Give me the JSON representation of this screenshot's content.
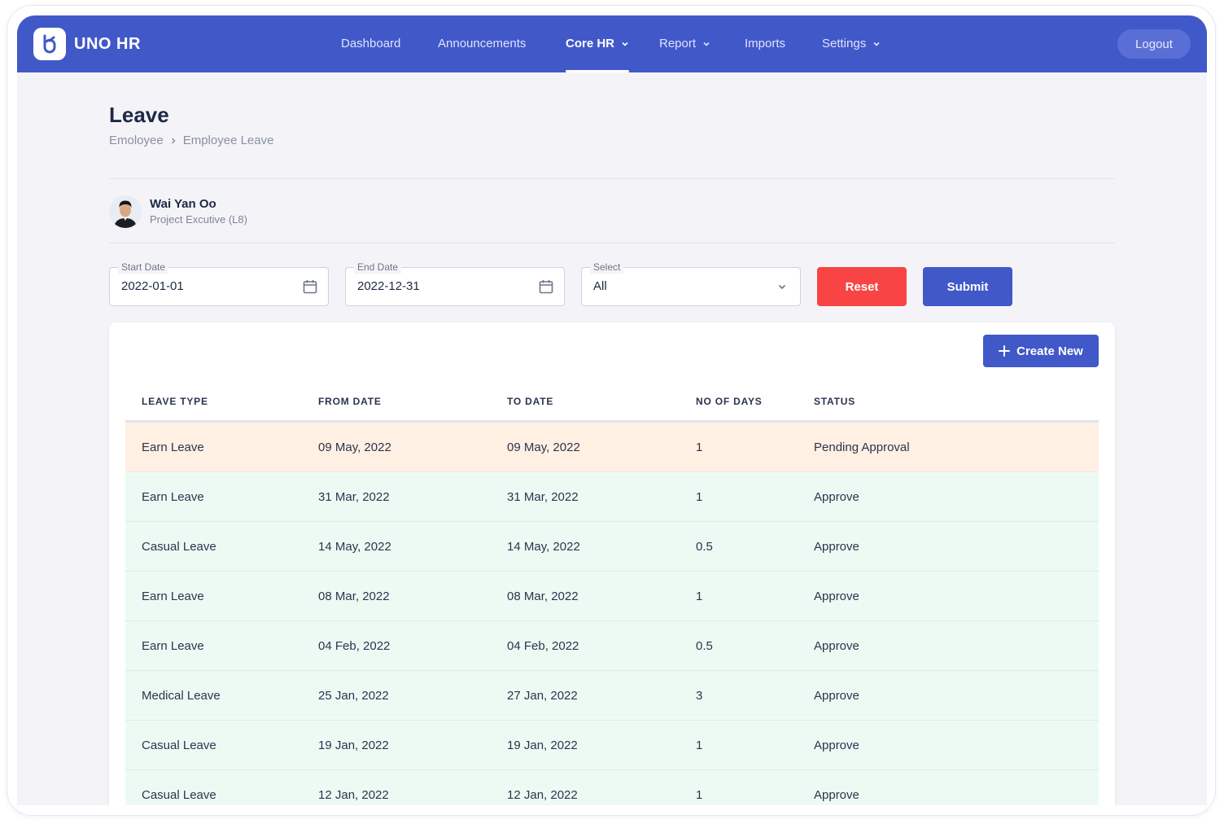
{
  "app": {
    "brand": "UNO HR",
    "logo_icon": "uno-hr-logo-icon",
    "colors": {
      "primary": "#4158c9",
      "danger": "#f84444",
      "pending_row": "#fff0e3",
      "approved_row": "#edfaf4"
    }
  },
  "nav": {
    "items": [
      {
        "label": "Dashboard",
        "has_dropdown": false,
        "active": false
      },
      {
        "label": "Announcements",
        "has_dropdown": false,
        "active": false
      },
      {
        "label": "Core HR",
        "has_dropdown": true,
        "active": true
      },
      {
        "label": "Report",
        "has_dropdown": true,
        "active": false
      },
      {
        "label": "Imports",
        "has_dropdown": false,
        "active": false
      },
      {
        "label": "Settings",
        "has_dropdown": true,
        "active": false
      }
    ],
    "logout_label": "Logout"
  },
  "page": {
    "title": "Leave",
    "breadcrumb": [
      "Emoloyee",
      "Employee Leave"
    ]
  },
  "employee": {
    "name": "Wai Yan Oo",
    "role": "Project Excutive (L8)"
  },
  "filters": {
    "start_date": {
      "label": "Start Date",
      "value": "2022-01-01",
      "icon": "calendar-icon"
    },
    "end_date": {
      "label": "End Date",
      "value": "2022-12-31",
      "icon": "calendar-icon"
    },
    "select": {
      "label": "Select",
      "value": "All",
      "icon": "chevron-down-icon"
    },
    "reset_label": "Reset",
    "submit_label": "Submit"
  },
  "table": {
    "create_label": "Create New",
    "columns": [
      "LEAVE TYPE",
      "FROM DATE",
      "TO DATE",
      "NO OF DAYS",
      "STATUS"
    ],
    "rows": [
      {
        "type": "Earn Leave",
        "from": "09 May, 2022",
        "to": "09 May, 2022",
        "days": "1",
        "status": "Pending Approval"
      },
      {
        "type": "Earn Leave",
        "from": "31 Mar, 2022",
        "to": "31 Mar, 2022",
        "days": "1",
        "status": "Approve"
      },
      {
        "type": "Casual Leave",
        "from": "14 May, 2022",
        "to": "14 May, 2022",
        "days": "0.5",
        "status": "Approve"
      },
      {
        "type": "Earn Leave",
        "from": "08 Mar, 2022",
        "to": "08 Mar, 2022",
        "days": "1",
        "status": "Approve"
      },
      {
        "type": "Earn Leave",
        "from": "04 Feb, 2022",
        "to": "04 Feb, 2022",
        "days": "0.5",
        "status": "Approve"
      },
      {
        "type": "Medical Leave",
        "from": "25 Jan, 2022",
        "to": "27 Jan, 2022",
        "days": "3",
        "status": "Approve"
      },
      {
        "type": "Casual Leave",
        "from": "19 Jan, 2022",
        "to": "19 Jan, 2022",
        "days": "1",
        "status": "Approve"
      },
      {
        "type": "Casual Leave",
        "from": "12 Jan, 2022",
        "to": "12 Jan, 2022",
        "days": "1",
        "status": "Approve"
      }
    ]
  }
}
